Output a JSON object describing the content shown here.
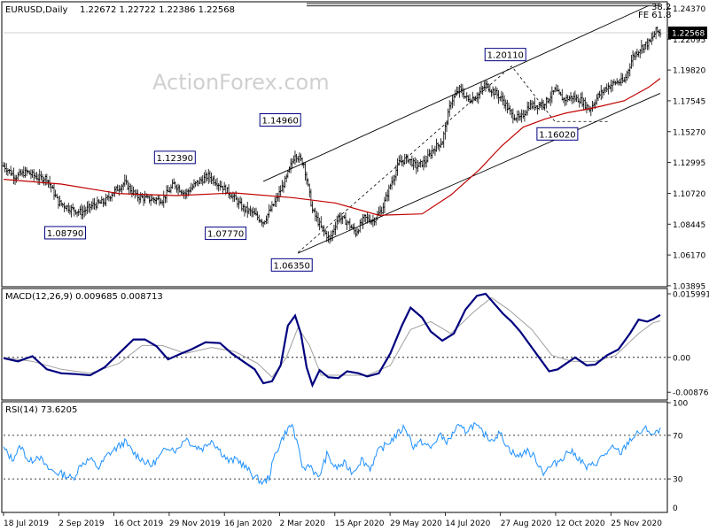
{
  "chart_data": [
    {
      "type": "candlestick",
      "title": "EURUSD,Daily",
      "ohlc_label": "1.22672 1.22722 1.22386 1.22568",
      "last_price": "1.22568",
      "watermark": "ActionForex.com",
      "ylim": [
        1.0389,
        1.2479
      ],
      "yticks": [
        "1.24370",
        "1.22095",
        "1.19820",
        "1.17545",
        "1.15270",
        "1.12995",
        "1.10720",
        "1.08445",
        "1.06170",
        "1.03895"
      ],
      "x_dates": [
        "18 Jul 2019",
        "2 Sep 2019",
        "16 Oct 2019",
        "29 Nov 2019",
        "16 Jan 2020",
        "2 Mar 2020",
        "15 Apr 2020",
        "29 May 2020",
        "14 Jul 2020",
        "27 Aug 2020",
        "12 Oct 2020",
        "25 Nov 2020"
      ],
      "close_path": [
        [
          0,
          1.1275
        ],
        [
          8,
          1.1195
        ],
        [
          16,
          1.123
        ],
        [
          24,
          1.1185
        ],
        [
          30,
          1.1185
        ],
        [
          38,
          1.1005
        ],
        [
          46,
          1.096
        ],
        [
          54,
          1.093
        ],
        [
          62,
          1.0985
        ],
        [
          70,
          1.101
        ],
        [
          76,
          1.108
        ],
        [
          84,
          1.115
        ],
        [
          92,
          1.105
        ],
        [
          100,
          1.103
        ],
        [
          110,
          1.1025
        ],
        [
          118,
          1.114
        ],
        [
          126,
          1.107
        ],
        [
          134,
          1.115
        ],
        [
          142,
          1.12
        ],
        [
          150,
          1.1135
        ],
        [
          158,
          1.106
        ],
        [
          166,
          1.096
        ],
        [
          172,
          1.093
        ],
        [
          180,
          1.086
        ],
        [
          188,
          1.1005
        ],
        [
          196,
          1.1185
        ],
        [
          202,
          1.1365
        ],
        [
          208,
          1.129
        ],
        [
          214,
          1.0945
        ],
        [
          220,
          1.082
        ],
        [
          226,
          1.073
        ],
        [
          232,
          1.09
        ],
        [
          238,
          1.086
        ],
        [
          244,
          1.078
        ],
        [
          250,
          1.089
        ],
        [
          256,
          1.087
        ],
        [
          262,
          1.095
        ],
        [
          268,
          1.113
        ],
        [
          274,
          1.13
        ],
        [
          280,
          1.133
        ],
        [
          286,
          1.127
        ],
        [
          292,
          1.1305
        ],
        [
          298,
          1.14
        ],
        [
          304,
          1.1455
        ],
        [
          310,
          1.175
        ],
        [
          316,
          1.184
        ],
        [
          322,
          1.176
        ],
        [
          328,
          1.179
        ],
        [
          334,
          1.187
        ],
        [
          340,
          1.182
        ],
        [
          346,
          1.176
        ],
        [
          352,
          1.165
        ],
        [
          358,
          1.162
        ],
        [
          364,
          1.172
        ],
        [
          370,
          1.172
        ],
        [
          376,
          1.175
        ],
        [
          382,
          1.183
        ],
        [
          388,
          1.1765
        ],
        [
          394,
          1.178
        ],
        [
          400,
          1.176
        ],
        [
          406,
          1.169
        ],
        [
          412,
          1.179
        ],
        [
          418,
          1.1855
        ],
        [
          424,
          1.189
        ],
        [
          430,
          1.19
        ],
        [
          436,
          1.208
        ],
        [
          442,
          1.215
        ],
        [
          448,
          1.219
        ],
        [
          452,
          1.227
        ],
        [
          455,
          1.2257
        ]
      ],
      "ma": [
        [
          0,
          1.1175
        ],
        [
          40,
          1.114
        ],
        [
          80,
          1.107
        ],
        [
          120,
          1.1055
        ],
        [
          160,
          1.1075
        ],
        [
          200,
          1.104
        ],
        [
          230,
          1.1
        ],
        [
          260,
          1.091
        ],
        [
          290,
          1.092
        ],
        [
          310,
          1.106
        ],
        [
          330,
          1.125
        ],
        [
          345,
          1.142
        ],
        [
          360,
          1.156
        ],
        [
          375,
          1.162
        ],
        [
          390,
          1.1665
        ],
        [
          410,
          1.1705
        ],
        [
          430,
          1.1755
        ],
        [
          447,
          1.1855
        ],
        [
          455,
          1.192
        ]
      ],
      "channel_upper": [
        [
          180,
          1.116
        ],
        [
          447,
          1.2457
        ]
      ],
      "channel_lower": [
        [
          204,
          1.063
        ],
        [
          455,
          1.181
        ]
      ],
      "fib_lines": [
        {
          "label": "38.2",
          "level": 1.2472,
          "x_start": 210,
          "x_end": 455
        },
        {
          "label": "FE 61.8",
          "level": 1.2455,
          "x_start": 210,
          "x_end": 455
        }
      ],
      "dashed_path": [
        [
          204,
          1.0635
        ],
        [
          352,
          1.2011
        ],
        [
          382,
          1.1602
        ],
        [
          420,
          1.1602
        ]
      ],
      "annotations": [
        {
          "label": "1.08790",
          "x": 47,
          "value": 1.0879
        },
        {
          "label": "1.12390",
          "x": 123,
          "value": 1.1239
        },
        {
          "label": "1.14960",
          "x": 196,
          "value": 1.1496
        },
        {
          "label": "1.07770",
          "x": 176,
          "value": 1.0777
        },
        {
          "label": "1.06350",
          "x": 204,
          "value": 1.0635
        },
        {
          "label": "1.20110",
          "x": 352,
          "value": 1.2011
        },
        {
          "label": "1.16020",
          "x": 388,
          "value": 1.1602
        }
      ]
    },
    {
      "type": "line",
      "title": "MACD(12,26,9) 0.009685 0.008713",
      "ylim": [
        -0.0105,
        0.0171
      ],
      "yticks": [
        "0.015991",
        "0.00",
        "-0.00876"
      ],
      "macd": [
        [
          0,
          -0.0002
        ],
        [
          10,
          -0.001
        ],
        [
          20,
          0.0003
        ],
        [
          30,
          -0.003
        ],
        [
          40,
          -0.004
        ],
        [
          50,
          -0.0042
        ],
        [
          60,
          -0.0045
        ],
        [
          70,
          -0.0025
        ],
        [
          80,
          0.001
        ],
        [
          90,
          0.0045
        ],
        [
          98,
          0.0045
        ],
        [
          106,
          0.0028
        ],
        [
          114,
          -0.0005
        ],
        [
          122,
          0.0008
        ],
        [
          130,
          0.002
        ],
        [
          140,
          0.0038
        ],
        [
          150,
          0.0036
        ],
        [
          158,
          0.001
        ],
        [
          166,
          -0.001
        ],
        [
          174,
          -0.003
        ],
        [
          180,
          -0.0065
        ],
        [
          186,
          -0.006
        ],
        [
          192,
          -0.002
        ],
        [
          197,
          0.008
        ],
        [
          202,
          0.0105
        ],
        [
          206,
          0.006
        ],
        [
          210,
          -0.0025
        ],
        [
          214,
          -0.007
        ],
        [
          219,
          -0.0032
        ],
        [
          225,
          -0.005
        ],
        [
          232,
          -0.0052
        ],
        [
          238,
          -0.0035
        ],
        [
          246,
          -0.004
        ],
        [
          252,
          -0.0048
        ],
        [
          260,
          -0.004
        ],
        [
          268,
          0.001
        ],
        [
          276,
          0.008
        ],
        [
          282,
          0.0125
        ],
        [
          290,
          0.01
        ],
        [
          296,
          0.0065
        ],
        [
          304,
          0.0042
        ],
        [
          312,
          0.006
        ],
        [
          320,
          0.012
        ],
        [
          328,
          0.0155
        ],
        [
          334,
          0.016
        ],
        [
          340,
          0.0135
        ],
        [
          346,
          0.011
        ],
        [
          352,
          0.009
        ],
        [
          358,
          0.0065
        ],
        [
          366,
          0.0025
        ],
        [
          372,
          -0.0005
        ],
        [
          378,
          -0.0035
        ],
        [
          384,
          -0.003
        ],
        [
          390,
          -0.0015
        ],
        [
          396,
          0.0
        ],
        [
          404,
          -0.002
        ],
        [
          410,
          -0.0018
        ],
        [
          418,
          0.0005
        ],
        [
          426,
          0.002
        ],
        [
          434,
          0.006
        ],
        [
          440,
          0.0095
        ],
        [
          446,
          0.009
        ],
        [
          450,
          0.0096
        ],
        [
          455,
          0.0107
        ]
      ],
      "signal": [
        [
          0,
          0.0
        ],
        [
          20,
          -0.001
        ],
        [
          40,
          -0.003
        ],
        [
          60,
          -0.004
        ],
        [
          80,
          -0.0015
        ],
        [
          96,
          0.003
        ],
        [
          110,
          0.003
        ],
        [
          126,
          0.001
        ],
        [
          144,
          0.0025
        ],
        [
          160,
          0.0015
        ],
        [
          176,
          -0.0015
        ],
        [
          186,
          -0.005
        ],
        [
          196,
          0.0
        ],
        [
          204,
          0.0075
        ],
        [
          212,
          0.003
        ],
        [
          220,
          -0.0045
        ],
        [
          236,
          -0.0045
        ],
        [
          252,
          -0.0045
        ],
        [
          268,
          -0.002
        ],
        [
          282,
          0.007
        ],
        [
          296,
          0.009
        ],
        [
          310,
          0.006
        ],
        [
          326,
          0.0115
        ],
        [
          338,
          0.015
        ],
        [
          350,
          0.012
        ],
        [
          366,
          0.007
        ],
        [
          380,
          0.0005
        ],
        [
          394,
          -0.001
        ],
        [
          410,
          -0.001
        ],
        [
          424,
          0.0005
        ],
        [
          440,
          0.006
        ],
        [
          450,
          0.0087
        ],
        [
          455,
          0.0092
        ]
      ]
    },
    {
      "type": "line",
      "title": "RSI(14) 73.6205",
      "ylim": [
        0,
        100
      ],
      "yticks": [
        "100",
        "70",
        "30",
        "0"
      ],
      "rsi": [
        [
          0,
          58
        ],
        [
          6,
          48
        ],
        [
          12,
          60
        ],
        [
          18,
          45
        ],
        [
          24,
          52
        ],
        [
          30,
          40
        ],
        [
          36,
          36
        ],
        [
          42,
          34
        ],
        [
          48,
          30
        ],
        [
          54,
          44
        ],
        [
          60,
          48
        ],
        [
          66,
          40
        ],
        [
          72,
          52
        ],
        [
          78,
          58
        ],
        [
          84,
          64
        ],
        [
          90,
          54
        ],
        [
          96,
          48
        ],
        [
          102,
          42
        ],
        [
          108,
          50
        ],
        [
          114,
          60
        ],
        [
          120,
          56
        ],
        [
          126,
          68
        ],
        [
          132,
          60
        ],
        [
          138,
          58
        ],
        [
          144,
          66
        ],
        [
          150,
          56
        ],
        [
          156,
          46
        ],
        [
          162,
          48
        ],
        [
          168,
          40
        ],
        [
          174,
          32
        ],
        [
          180,
          26
        ],
        [
          184,
          32
        ],
        [
          188,
          52
        ],
        [
          192,
          64
        ],
        [
          196,
          74
        ],
        [
          200,
          80
        ],
        [
          204,
          58
        ],
        [
          208,
          38
        ],
        [
          212,
          44
        ],
        [
          218,
          30
        ],
        [
          224,
          52
        ],
        [
          230,
          40
        ],
        [
          236,
          44
        ],
        [
          242,
          36
        ],
        [
          248,
          48
        ],
        [
          254,
          40
        ],
        [
          260,
          56
        ],
        [
          266,
          62
        ],
        [
          272,
          70
        ],
        [
          278,
          78
        ],
        [
          284,
          60
        ],
        [
          290,
          64
        ],
        [
          296,
          58
        ],
        [
          302,
          70
        ],
        [
          308,
          64
        ],
        [
          314,
          78
        ],
        [
          320,
          74
        ],
        [
          326,
          80
        ],
        [
          332,
          72
        ],
        [
          338,
          66
        ],
        [
          344,
          72
        ],
        [
          350,
          58
        ],
        [
          356,
          50
        ],
        [
          362,
          56
        ],
        [
          368,
          50
        ],
        [
          374,
          36
        ],
        [
          380,
          42
        ],
        [
          386,
          48
        ],
        [
          392,
          56
        ],
        [
          398,
          50
        ],
        [
          404,
          40
        ],
        [
          410,
          44
        ],
        [
          416,
          52
        ],
        [
          422,
          58
        ],
        [
          428,
          54
        ],
        [
          434,
          66
        ],
        [
          440,
          72
        ],
        [
          446,
          76
        ],
        [
          450,
          70
        ],
        [
          455,
          74
        ]
      ]
    }
  ]
}
